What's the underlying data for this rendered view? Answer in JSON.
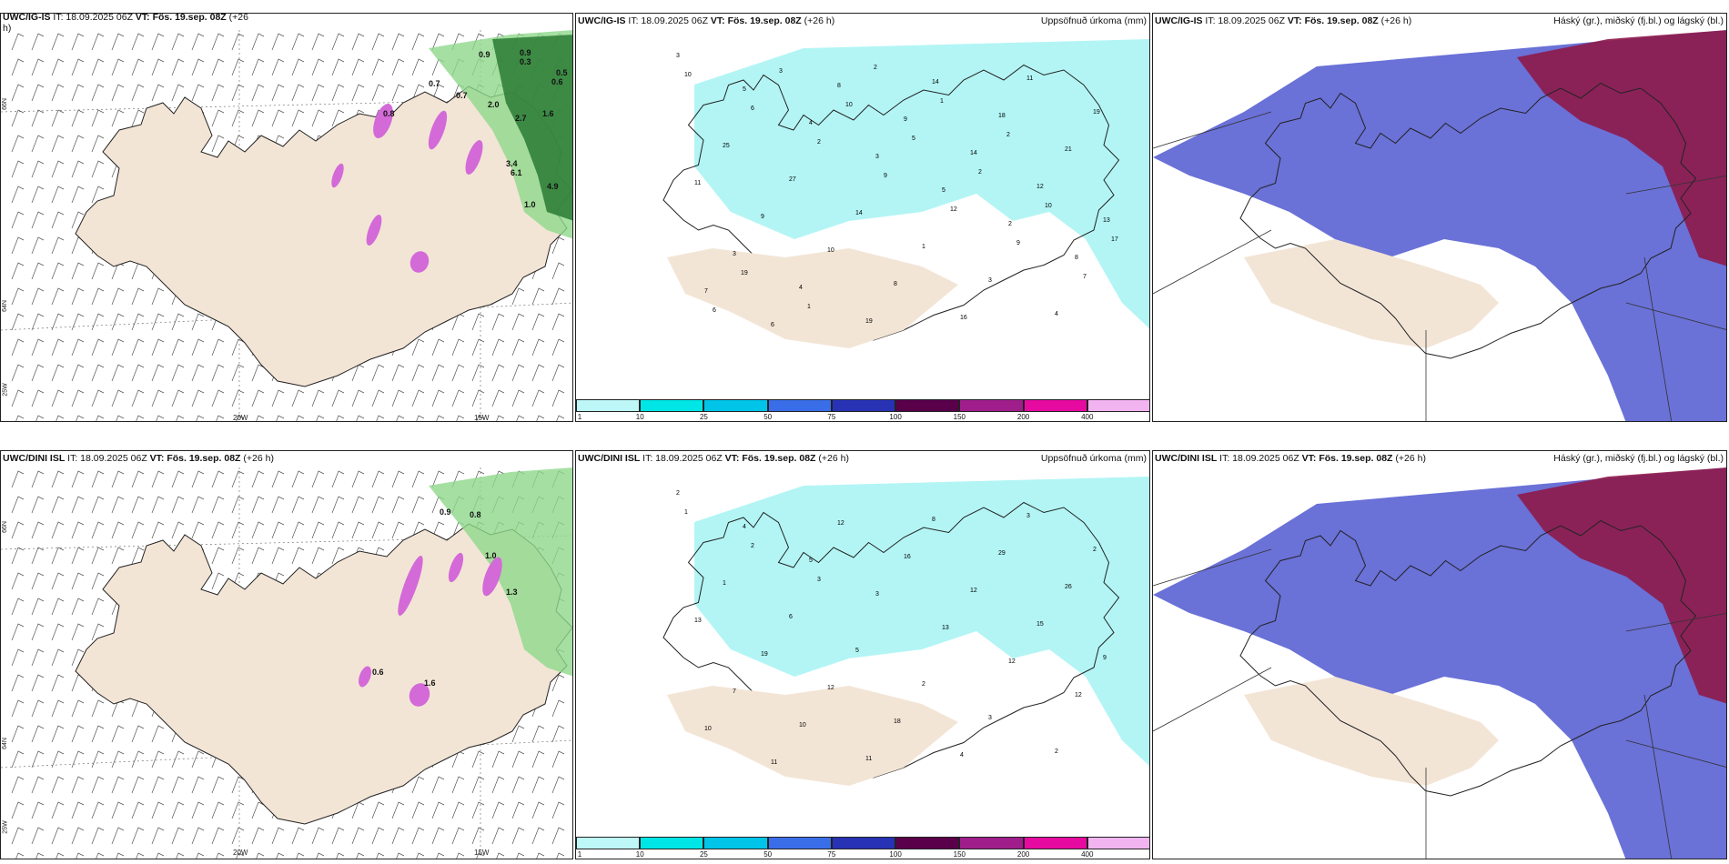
{
  "colors": {
    "land": "#f3e5d6",
    "precip_light": "#b3f5f5",
    "cloud_mid": "#5058d0",
    "cloud_high": "#8e1a4a",
    "snow": "#d36ad8",
    "green": "#8fd88b"
  },
  "rows": [
    {
      "wind": {
        "title_model": "UWC/IG-IS",
        "title_it": "IT: 18.09.2025 06Z",
        "title_vt": "VT: Fös. 19.sep. 08Z",
        "title_lead": "(+26",
        "title_lead2": "h)",
        "lon_labels": [
          "20W",
          "15W"
        ],
        "lat_labels": [
          "66N",
          "64N",
          "25W"
        ],
        "numbers": [
          "0.9",
          "0.9",
          "0.3",
          "0.5",
          "0.6",
          "0.7",
          "0.7",
          "0.8",
          "2.0",
          "2.7",
          "1.6",
          "3.4",
          "1.0",
          "6.1",
          "4.9"
        ]
      },
      "precip": {
        "title_model": "UWC/IG-IS",
        "title_it": "IT: 18.09.2025 06Z",
        "title_vt": "VT: Fös. 19.sep. 08Z",
        "title_lead": "(+26 h)",
        "title_right": "Uppsöfnuð úrkoma (mm)",
        "numbers": [
          "3",
          "5",
          "4",
          "3",
          "5",
          "2",
          "8",
          "7",
          "6",
          "8",
          "9",
          "14",
          "12",
          "13",
          "3",
          "4",
          "19",
          "14",
          "18",
          "21",
          "11",
          "9",
          "10",
          "8",
          "16",
          "11",
          "19",
          "25",
          "27",
          "14",
          "1",
          "3",
          "4",
          "10",
          "6",
          "2",
          "9",
          "12",
          "9",
          "7",
          "6",
          "3",
          "10",
          "5",
          "2",
          "10",
          "17",
          "19",
          "1",
          "2",
          "1",
          "2"
        ]
      },
      "cloud": {
        "title_model": "UWC/IG-IS",
        "title_it": "IT: 18.09.2025 06Z",
        "title_vt": "VT: Fös. 19.sep. 08Z",
        "title_lead": "(+26 h)",
        "title_right": "Háský (gr.), miðský (fj.bl.) og lágský (bl.)"
      }
    },
    {
      "wind": {
        "title_model": "UWC/DINI ISL",
        "title_it": "IT: 18.09.2025 06Z",
        "title_vt": "VT: Fös. 19.sep. 08Z",
        "title_lead": "(+26 h)",
        "title_lead2": "",
        "lon_labels": [
          "20W",
          "15W"
        ],
        "lat_labels": [
          "66N",
          "64N",
          "25W"
        ],
        "numbers": [
          "0.9",
          "0.8",
          "1.0",
          "1.3",
          "1.6",
          "0.6"
        ]
      },
      "precip": {
        "title_model": "UWC/DINI ISL",
        "title_it": "IT: 18.09.2025 06Z",
        "title_vt": "VT: Fös. 19.sep. 08Z",
        "title_lead": "(+26 h)",
        "title_right": "Uppsöfnuð úrkoma (mm)",
        "numbers": [
          "2",
          "4",
          "5",
          "3",
          "13",
          "12",
          "12",
          "10",
          "11",
          "12",
          "16",
          "12",
          "15",
          "9",
          "7",
          "10",
          "11",
          "8",
          "29",
          "26",
          "13",
          "19",
          "12",
          "18",
          "4",
          "3",
          "2",
          "1",
          "6",
          "5",
          "2",
          "3",
          "2",
          "1",
          "2",
          "3"
        ]
      },
      "cloud": {
        "title_model": "UWC/DINI ISL",
        "title_it": "IT: 18.09.2025 06Z",
        "title_vt": "VT: Fös. 19.sep. 08Z",
        "title_lead": "(+26 h)",
        "title_right": "Háský (gr.), miðský (fj.bl.) og lágský (bl.)"
      }
    }
  ],
  "colorbar": {
    "labels": [
      "1",
      "10",
      "25",
      "50",
      "75",
      "100",
      "150",
      "200",
      "400"
    ],
    "colors": [
      "#bdf7f7",
      "#00e6e6",
      "#00c4e8",
      "#3a6ee8",
      "#2832b4",
      "#5a004a",
      "#a01e8c",
      "#e60aa0",
      "#f2b4f0"
    ]
  }
}
